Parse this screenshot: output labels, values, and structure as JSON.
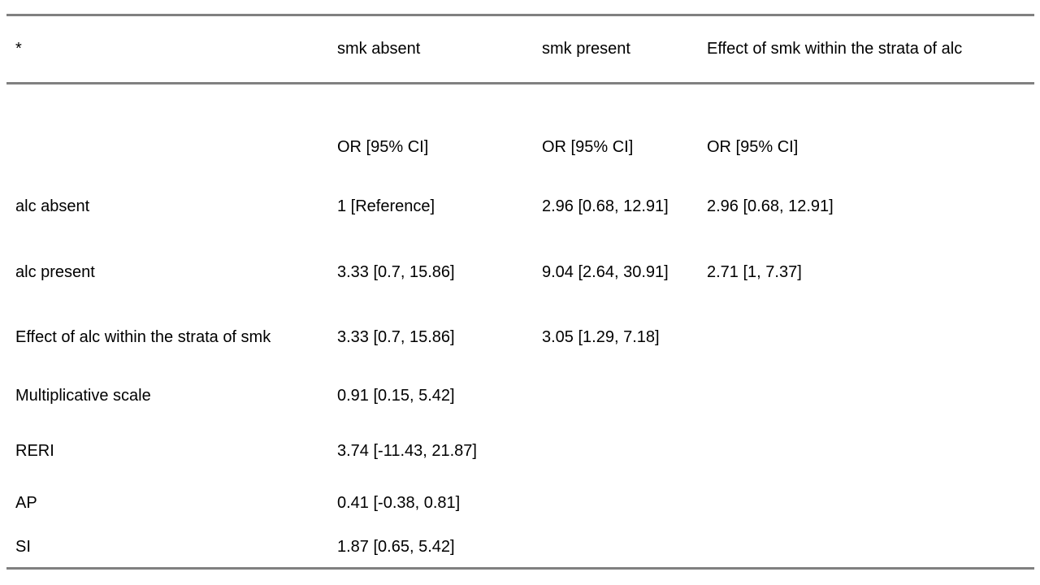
{
  "colors": {
    "rule": "#808080",
    "text": "#000000",
    "background": "#ffffff"
  },
  "table": {
    "columns": [
      "*",
      "smk absent",
      "smk present",
      "Effect of smk within the strata of alc"
    ],
    "rows": [
      {
        "cells": [
          "",
          "OR [95% CI]",
          "OR [95% CI]",
          "OR [95% CI]"
        ]
      },
      {
        "cells": [
          "alc absent",
          "1 [Reference]",
          "2.96 [0.68, 12.91]",
          "2.96 [0.68, 12.91]"
        ]
      },
      {
        "cells": [
          "alc present",
          "3.33 [0.7, 15.86]",
          "9.04 [2.64, 30.91]",
          "2.71 [1, 7.37]"
        ]
      },
      {
        "cells": [
          "Effect of alc within the strata of smk",
          "3.33 [0.7, 15.86]",
          "3.05 [1.29, 7.18]",
          ""
        ]
      },
      {
        "cells": [
          "Multiplicative scale",
          "0.91 [0.15, 5.42]",
          "",
          ""
        ]
      },
      {
        "cells": [
          "RERI",
          "3.74 [-11.43, 21.87]",
          "",
          ""
        ]
      },
      {
        "cells": [
          "AP",
          "0.41 [-0.38, 0.81]",
          "",
          ""
        ]
      },
      {
        "cells": [
          "SI",
          "1.87 [0.65, 5.42]",
          "",
          ""
        ]
      }
    ]
  }
}
